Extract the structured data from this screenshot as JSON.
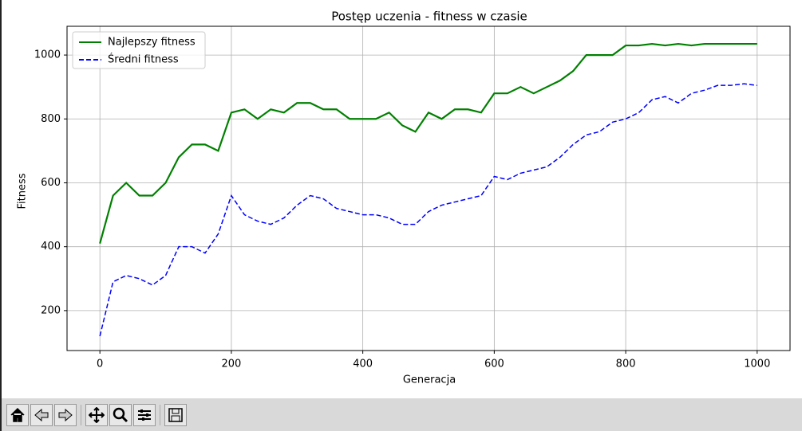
{
  "chart_data": {
    "type": "line",
    "title": "Postęp uczenia - fitness w czasie",
    "x_label": "Generacja",
    "y_label": "Fitness",
    "x": [
      0,
      20,
      40,
      60,
      80,
      100,
      120,
      140,
      160,
      180,
      200,
      220,
      240,
      260,
      280,
      300,
      320,
      340,
      360,
      380,
      400,
      420,
      440,
      460,
      480,
      500,
      520,
      540,
      560,
      580,
      600,
      620,
      640,
      660,
      680,
      700,
      720,
      740,
      760,
      780,
      800,
      820,
      840,
      860,
      880,
      900,
      920,
      940,
      960,
      980,
      1000
    ],
    "series": [
      {
        "name": "Najlepszy fitness",
        "color": "#008000",
        "linestyle": "solid",
        "values": [
          410,
          560,
          600,
          560,
          560,
          600,
          680,
          720,
          720,
          700,
          820,
          830,
          800,
          830,
          820,
          850,
          850,
          830,
          830,
          800,
          800,
          800,
          820,
          780,
          760,
          820,
          800,
          830,
          830,
          820,
          880,
          880,
          900,
          880,
          900,
          920,
          950,
          1000,
          1000,
          1000,
          1030,
          1030,
          1035,
          1030,
          1035,
          1030,
          1035,
          1035,
          1035,
          1035,
          1035
        ]
      },
      {
        "name": "Średni fitness",
        "color": "#0000ff",
        "linestyle": "dashed",
        "values": [
          120,
          290,
          310,
          300,
          280,
          310,
          400,
          400,
          380,
          440,
          560,
          500,
          480,
          470,
          490,
          530,
          560,
          550,
          520,
          510,
          500,
          500,
          490,
          470,
          470,
          510,
          530,
          540,
          550,
          560,
          620,
          610,
          630,
          640,
          650,
          680,
          720,
          750,
          760,
          790,
          800,
          820,
          860,
          870,
          850,
          880,
          890,
          905,
          905,
          910,
          905
        ]
      }
    ],
    "xlim": [
      -50,
      1050
    ],
    "ylim": [
      75,
      1090
    ],
    "xticks": [
      0,
      200,
      400,
      600,
      800,
      1000
    ],
    "yticks": [
      200,
      400,
      600,
      800,
      1000
    ],
    "grid": true,
    "legend": "upper left"
  }
}
